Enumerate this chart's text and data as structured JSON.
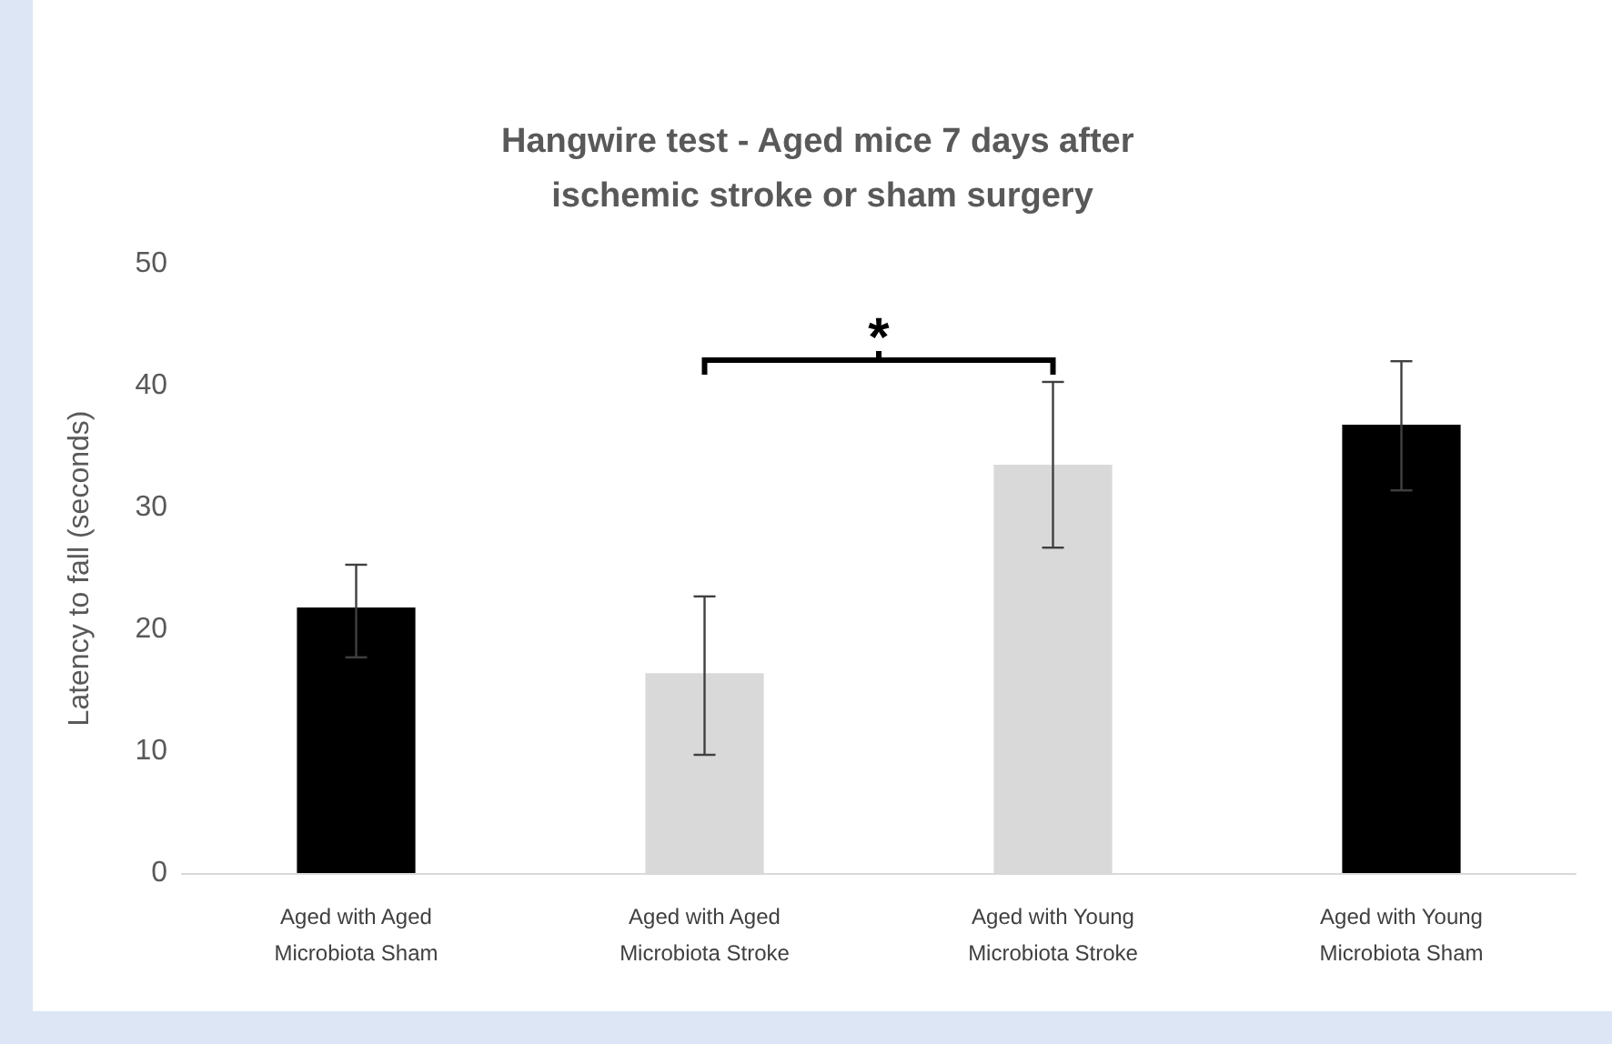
{
  "chart_data": {
    "type": "bar",
    "title": "Hangwire test - Aged mice 7 days after ischemic stroke or sham surgery",
    "ylabel": "Latency to fall (seconds)",
    "categories": [
      "Aged with Aged Microbiota Sham",
      "Aged with Aged Microbiota Stroke",
      "Aged with Young Microbiota Stroke",
      "Aged with Young Microbiota Sham"
    ],
    "values": [
      21.8,
      16.4,
      33.5,
      36.8
    ],
    "colors": [
      "#000000",
      "#d9d9d9",
      "#d9d9d9",
      "#000000"
    ],
    "errors": [
      [
        17.7,
        25.3
      ],
      [
        9.7,
        22.7
      ],
      [
        26.7,
        40.3
      ],
      [
        31.4,
        42.0
      ]
    ],
    "ylim": [
      0,
      50
    ],
    "yticks": [
      0,
      10,
      20,
      30,
      40,
      50
    ],
    "annotations": [
      "*"
    ]
  }
}
